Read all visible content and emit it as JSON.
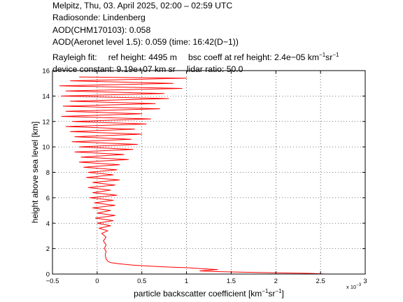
{
  "header": {
    "line1": "Melpitz, Thu, 03. April 2025, 02:00 – 02:59 UTC",
    "line2": "Radiosonde: Lindenberg",
    "line3": "AOD(CHM170103): 0.058",
    "line4": "AOD(Aeronet level 1.5): 0.059   (time: 16:42(D−1))",
    "rayleigh_label": "Rayleigh fit:",
    "ref_height": "ref height: 4495 m",
    "bsc_coeff_prefix": "bsc coeff at ref height: 2.4e−05 km",
    "bsc_coeff_unit_mid": "sr",
    "unit_exp": "−1",
    "device_constant": "device constant: 9.19e+07 km sr",
    "lidar_ratio": "lidar ratio: 50.0"
  },
  "chart_data": {
    "type": "line",
    "xlabel": "particle backscatter coefficient [km",
    "xlabel_mid": "sr",
    "xlabel_end": "]",
    "xlabel_exp": "−1",
    "ylabel": "height above sea level [km]",
    "x_exponent_label": "x 10",
    "x_exponent_power": "−3",
    "xlim": [
      -0.5,
      3.0
    ],
    "ylim": [
      0,
      16
    ],
    "xticks": [
      -0.5,
      0,
      0.5,
      1,
      1.5,
      2,
      2.5,
      3
    ],
    "xtick_labels": [
      "−0.5",
      "0",
      "0.5",
      "1",
      "1.5",
      "2",
      "2.5",
      "3"
    ],
    "yticks": [
      0,
      2,
      4,
      6,
      8,
      10,
      12,
      14,
      16
    ],
    "ytick_labels": [
      "0",
      "2",
      "4",
      "6",
      "8",
      "10",
      "12",
      "14",
      "16"
    ],
    "grid": true,
    "series_color": "#ff0000",
    "series": [
      {
        "points": [
          [
            2.55,
            0.0
          ],
          [
            2.4,
            0.05
          ],
          [
            2.0,
            0.1
          ],
          [
            1.6,
            0.15
          ],
          [
            1.3,
            0.2
          ],
          [
            1.15,
            0.25
          ],
          [
            1.25,
            0.3
          ],
          [
            1.35,
            0.35
          ],
          [
            1.22,
            0.4
          ],
          [
            1.1,
            0.45
          ],
          [
            1.0,
            0.5
          ],
          [
            0.8,
            0.55
          ],
          [
            0.6,
            0.62
          ],
          [
            0.4,
            0.7
          ],
          [
            0.25,
            0.8
          ],
          [
            0.15,
            0.9
          ],
          [
            0.12,
            1.0
          ],
          [
            0.1,
            1.2
          ],
          [
            0.09,
            1.5
          ],
          [
            0.1,
            1.8
          ],
          [
            0.08,
            2.0
          ],
          [
            0.1,
            2.3
          ],
          [
            0.07,
            2.6
          ],
          [
            0.1,
            2.9
          ],
          [
            0.05,
            3.2
          ],
          [
            0.12,
            3.4
          ],
          [
            0.02,
            3.6
          ],
          [
            0.15,
            3.8
          ],
          [
            0.0,
            4.0
          ],
          [
            0.18,
            4.2
          ],
          [
            -0.02,
            4.4
          ],
          [
            0.2,
            4.6
          ],
          [
            0.0,
            4.8
          ],
          [
            0.15,
            5.0
          ],
          [
            -0.05,
            5.2
          ],
          [
            0.2,
            5.4
          ],
          [
            -0.03,
            5.6
          ],
          [
            0.18,
            5.8
          ],
          [
            -0.08,
            6.0
          ],
          [
            0.22,
            6.2
          ],
          [
            -0.05,
            6.4
          ],
          [
            0.15,
            6.6
          ],
          [
            -0.1,
            6.8
          ],
          [
            0.2,
            7.0
          ],
          [
            -0.05,
            7.2
          ],
          [
            0.25,
            7.4
          ],
          [
            -0.12,
            7.6
          ],
          [
            0.18,
            7.8
          ],
          [
            -0.1,
            8.0
          ],
          [
            0.22,
            8.2
          ],
          [
            -0.15,
            8.4
          ],
          [
            0.25,
            8.6
          ],
          [
            -0.2,
            8.8
          ],
          [
            0.35,
            9.0
          ],
          [
            -0.18,
            9.2
          ],
          [
            0.3,
            9.4
          ],
          [
            -0.25,
            9.6
          ],
          [
            0.4,
            9.8
          ],
          [
            -0.2,
            10.0
          ],
          [
            0.45,
            10.2
          ],
          [
            -0.28,
            10.4
          ],
          [
            0.38,
            10.6
          ],
          [
            -0.25,
            10.8
          ],
          [
            0.5,
            11.0
          ],
          [
            -0.3,
            11.2
          ],
          [
            0.42,
            11.4
          ],
          [
            -0.35,
            11.6
          ],
          [
            0.55,
            11.8
          ],
          [
            -0.28,
            12.0
          ],
          [
            0.6,
            12.2
          ],
          [
            -0.4,
            12.4
          ],
          [
            0.5,
            12.6
          ],
          [
            -0.35,
            12.8
          ],
          [
            0.7,
            13.0
          ],
          [
            -0.38,
            13.2
          ],
          [
            0.65,
            13.4
          ],
          [
            -0.3,
            13.6
          ],
          [
            0.8,
            13.8
          ],
          [
            -0.4,
            14.0
          ],
          [
            0.75,
            14.2
          ],
          [
            -0.35,
            14.4
          ],
          [
            0.95,
            14.6
          ],
          [
            -0.42,
            14.8
          ],
          [
            0.85,
            15.0
          ],
          [
            -0.3,
            15.2
          ],
          [
            1.0,
            15.4
          ],
          [
            -0.2,
            15.5
          ]
        ]
      }
    ]
  }
}
